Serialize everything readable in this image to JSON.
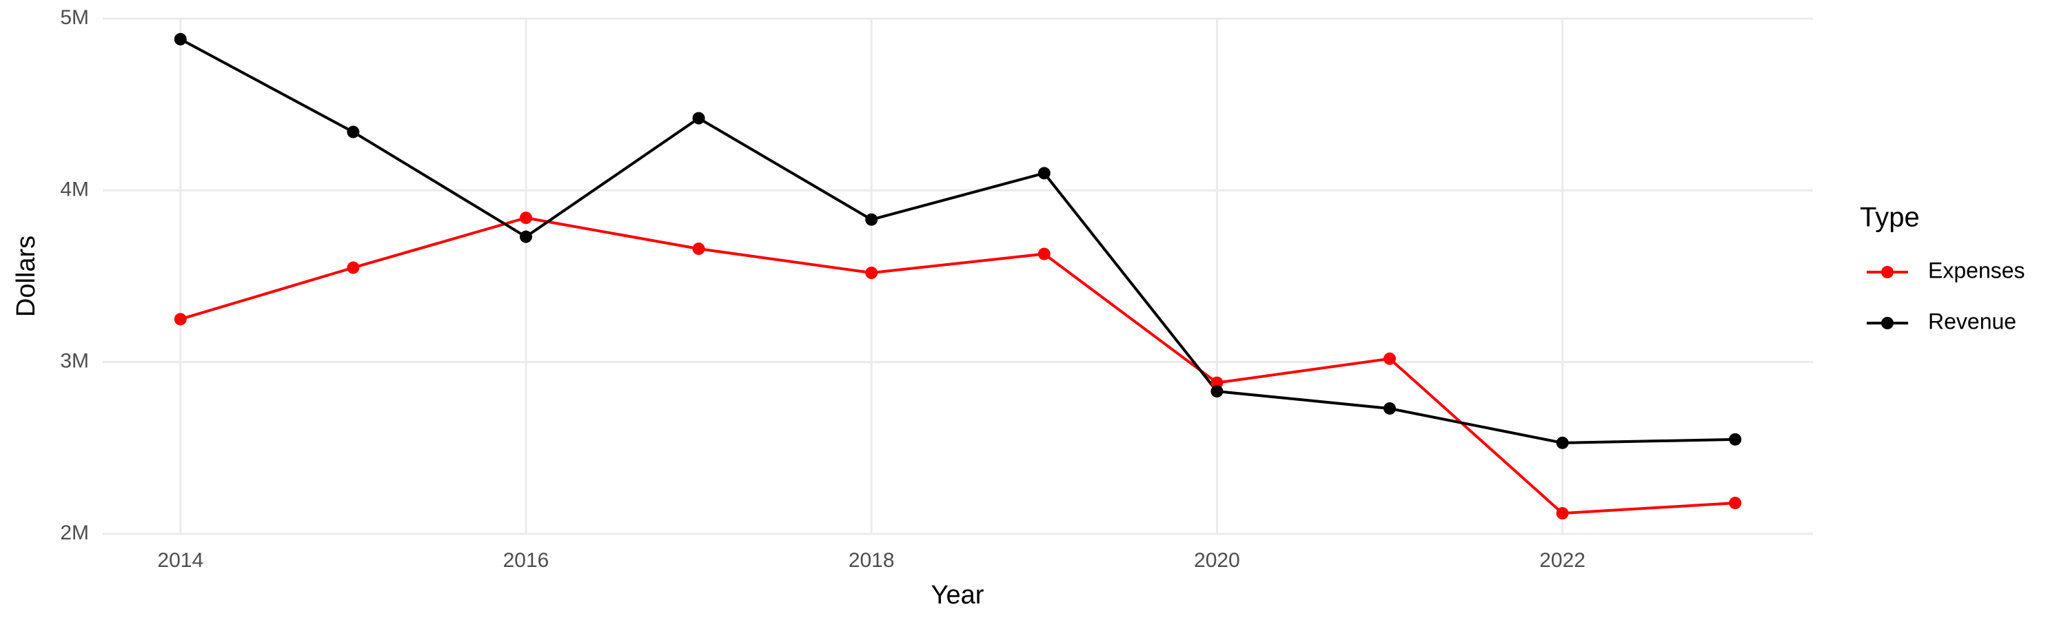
{
  "chart_data": {
    "type": "line",
    "x_label": "Year",
    "y_label": "Dollars",
    "x": [
      2014,
      2015,
      2016,
      2017,
      2018,
      2019,
      2020,
      2021,
      2022,
      2023
    ],
    "series": [
      {
        "name": "Expenses",
        "color": "#ff0000",
        "values": [
          3250000,
          3550000,
          3840000,
          3660000,
          3520000,
          3630000,
          2880000,
          3020000,
          2120000,
          2180000
        ]
      },
      {
        "name": "Revenue",
        "color": "#000000",
        "values": [
          4880000,
          4340000,
          3730000,
          4420000,
          3830000,
          4100000,
          2830000,
          2730000,
          2530000,
          2550000
        ]
      }
    ],
    "legend_title": "Type",
    "legend": "right",
    "xlim": [
      2013.55,
      2023.45
    ],
    "xticks": [
      2014,
      2016,
      2018,
      2020,
      2022
    ],
    "ylim": [
      2000000,
      5000000
    ],
    "yticks": [
      {
        "value": 2000000,
        "label": "2M"
      },
      {
        "value": 3000000,
        "label": "3M"
      },
      {
        "value": 4000000,
        "label": "4M"
      },
      {
        "value": 5000000,
        "label": "5M"
      }
    ],
    "grid": true
  }
}
